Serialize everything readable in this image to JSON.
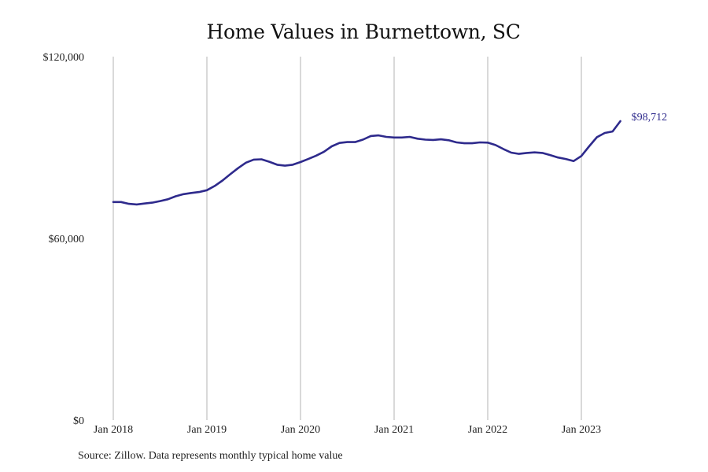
{
  "chart_data": {
    "type": "line",
    "title": "Home Values in Burnettown, SC",
    "xlabel": "",
    "ylabel": "",
    "ylim": [
      0,
      120000
    ],
    "y_ticks": [
      {
        "value": 0,
        "label": "$0"
      },
      {
        "value": 60000,
        "label": "$60,000"
      },
      {
        "value": 120000,
        "label": "$120,000"
      }
    ],
    "x_ticks": [
      "Jan 2018",
      "Jan 2019",
      "Jan 2020",
      "Jan 2021",
      "Jan 2022",
      "Jan 2023"
    ],
    "x_start": "Jan 2018",
    "grid": "vertical",
    "series": [
      {
        "color": "#2e2a8c",
        "last_value_label": "$98,712",
        "values": [
          72000,
          72000,
          71400,
          71200,
          71500,
          71800,
          72300,
          72900,
          73900,
          74600,
          75000,
          75300,
          75900,
          77300,
          79100,
          81200,
          83200,
          85000,
          86000,
          86100,
          85300,
          84300,
          84000,
          84300,
          85200,
          86200,
          87300,
          88600,
          90400,
          91500,
          91800,
          91800,
          92600,
          93800,
          94000,
          93500,
          93300,
          93300,
          93500,
          92900,
          92600,
          92500,
          92700,
          92400,
          91700,
          91400,
          91400,
          91700,
          91600,
          90800,
          89500,
          88300,
          87900,
          88200,
          88400,
          88200,
          87500,
          86700,
          86200,
          85500,
          87200,
          90400,
          93400,
          94800,
          95300,
          98712
        ]
      }
    ]
  },
  "source": "Source: Zillow. Data represents monthly typical home value"
}
